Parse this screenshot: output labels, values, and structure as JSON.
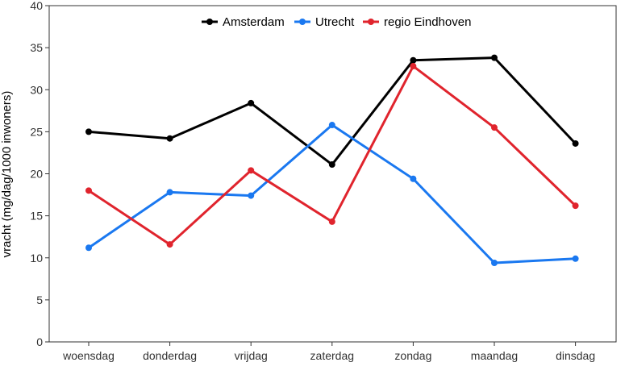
{
  "chart_data": {
    "type": "line",
    "title": "",
    "xlabel": "",
    "ylabel": "vracht (mg/dag/1000 inwoners)",
    "categories": [
      "woensdag",
      "donderdag",
      "vrijdag",
      "zaterdag",
      "zondag",
      "maandag",
      "dinsdag"
    ],
    "ylim": [
      0,
      40
    ],
    "yticks": [
      0,
      5,
      10,
      15,
      20,
      25,
      30,
      35,
      40
    ],
    "grid": false,
    "legend_position": "top",
    "series": [
      {
        "name": "Amsterdam",
        "color": "#000000",
        "values": [
          25.0,
          24.2,
          28.4,
          21.1,
          33.5,
          33.8,
          23.6
        ]
      },
      {
        "name": "Utrecht",
        "color": "#1a78f0",
        "values": [
          11.2,
          17.8,
          17.4,
          25.8,
          19.4,
          9.4,
          9.9
        ]
      },
      {
        "name": "regio Eindhoven",
        "color": "#e0242d",
        "values": [
          18.0,
          11.6,
          20.4,
          14.3,
          32.8,
          25.5,
          16.2
        ]
      }
    ]
  }
}
